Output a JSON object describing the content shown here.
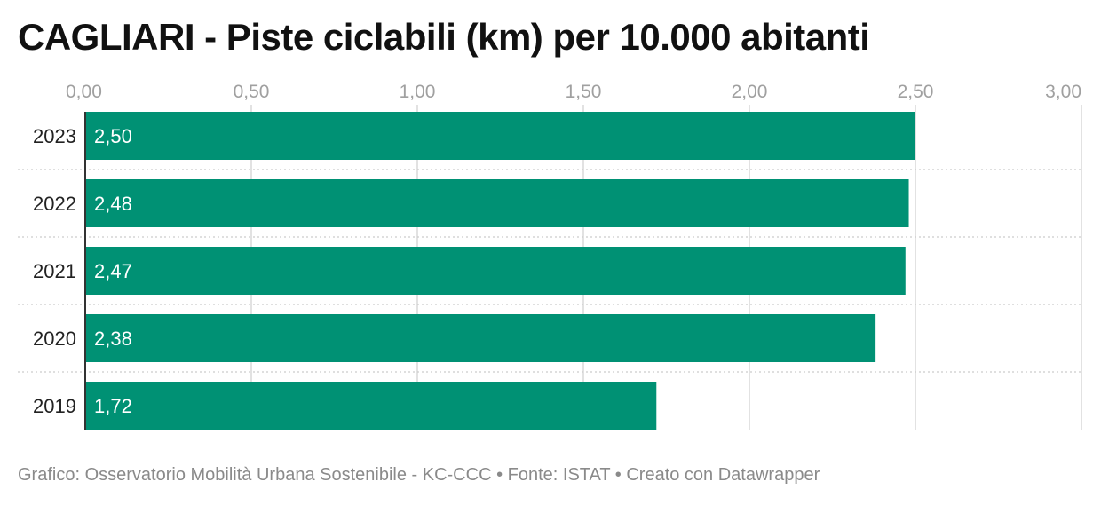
{
  "title": "CAGLIARI - Piste ciclabili (km) per 10.000 abitanti",
  "footer": "Grafico: Osservatorio Mobilità Urbana Sostenibile - KC-CCC • Fonte: ISTAT • Creato con Datawrapper",
  "colors": {
    "bar": "#009174",
    "label_inside": "#ffffff",
    "tick": "#a0a0a0",
    "category": "#222222",
    "grid": "#d8d8d8"
  },
  "chart_data": {
    "type": "bar",
    "orientation": "horizontal",
    "title": "CAGLIARI - Piste ciclabili (km) per 10.000 abitanti",
    "categories": [
      "2023",
      "2022",
      "2021",
      "2020",
      "2019"
    ],
    "values": [
      2.5,
      2.48,
      2.47,
      2.38,
      1.72
    ],
    "value_labels": [
      "2,50",
      "2,48",
      "2,47",
      "2,38",
      "1,72"
    ],
    "xlim": [
      0,
      3
    ],
    "xticks": [
      0,
      0.5,
      1,
      1.5,
      2,
      2.5,
      3
    ],
    "xtick_labels": [
      "0,00",
      "0,50",
      "1,00",
      "1,50",
      "2,00",
      "2,50",
      "3,00"
    ],
    "axis_position": "top",
    "grid": true,
    "legend": "none"
  }
}
